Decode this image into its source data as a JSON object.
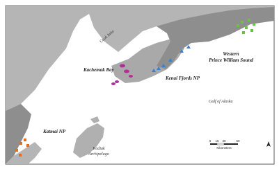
{
  "map": {
    "labels": {
      "cook_inlet": "Cook Inlet",
      "kachemak_bay": "Kachemak Bay",
      "kenai_fjords": "Kenai Fjords NP",
      "pws_line1": "Western",
      "pws_line2": "Prince William Sound",
      "gulf": "Gulf of Alaska",
      "katmai": "Katmai NP",
      "kodiak_line1": "Kodiak",
      "kodiak_line2": "Archipelago"
    },
    "scale_bar": {
      "title": "Kilometers",
      "ticks": [
        "0",
        "15",
        "30",
        "60"
      ]
    }
  }
}
